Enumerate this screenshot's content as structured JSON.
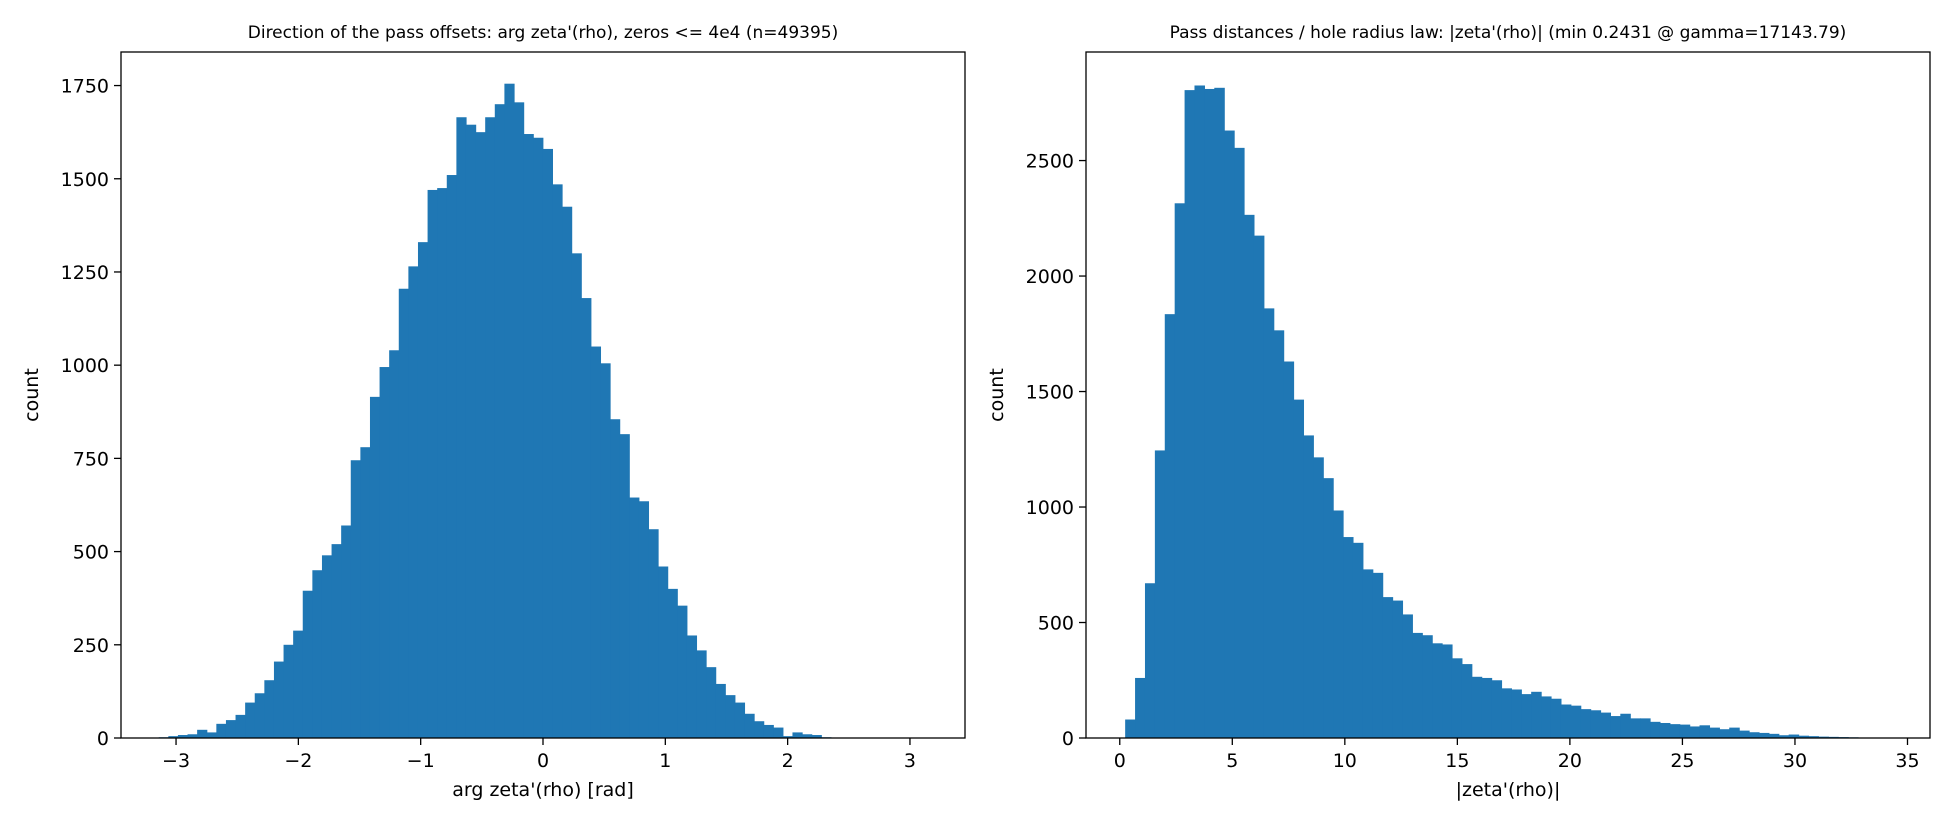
{
  "chart_data": [
    {
      "type": "bar",
      "title": "Direction of the pass offsets: arg zeta'(rho), zeros <= 4e4 (n=49395)",
      "xlabel": "arg zeta'(rho)  [rad]",
      "ylabel": "count",
      "xlim": [
        -3.45,
        3.45
      ],
      "ylim": [
        0,
        1840
      ],
      "xticks": [
        -3,
        -2,
        -1,
        0,
        1,
        2,
        3
      ],
      "xtick_labels": [
        "−3",
        "−2",
        "−1",
        "0",
        "1",
        "2",
        "3"
      ],
      "yticks": [
        0,
        250,
        500,
        750,
        1000,
        1250,
        1500,
        1750
      ],
      "ytick_labels": [
        "0",
        "250",
        "500",
        "750",
        "1000",
        "1250",
        "1500",
        "1750"
      ],
      "bin_start": -3.1416,
      "bin_width": 0.0785,
      "values": [
        2,
        5,
        8,
        10,
        22,
        15,
        38,
        48,
        62,
        95,
        120,
        155,
        205,
        250,
        288,
        395,
        450,
        490,
        520,
        570,
        745,
        780,
        915,
        995,
        1040,
        1205,
        1265,
        1330,
        1470,
        1475,
        1510,
        1665,
        1645,
        1625,
        1665,
        1700,
        1755,
        1705,
        1620,
        1610,
        1580,
        1485,
        1425,
        1300,
        1180,
        1050,
        1005,
        855,
        815,
        645,
        635,
        560,
        460,
        400,
        355,
        275,
        235,
        190,
        145,
        115,
        95,
        65,
        45,
        35,
        28,
        5,
        15,
        10,
        8,
        2
      ],
      "color": "#1f77b4",
      "grid": false
    },
    {
      "type": "bar",
      "title": "Pass distances / hole radius law: |zeta'(rho)| (min 0.2431 @ gamma=17143.79)",
      "xlabel": "|zeta'(rho)|",
      "ylabel": "count",
      "xlim": [
        -1.5,
        36.0
      ],
      "ylim": [
        0,
        2970
      ],
      "xticks": [
        0,
        5,
        10,
        15,
        20,
        25,
        30,
        35
      ],
      "xtick_labels": [
        "0",
        "5",
        "10",
        "15",
        "20",
        "25",
        "30",
        "35"
      ],
      "yticks": [
        0,
        500,
        1000,
        1500,
        2000,
        2500
      ],
      "ytick_labels": [
        "0",
        "500",
        "1000",
        "1500",
        "2000",
        "2500"
      ],
      "bin_start": 0.24,
      "bin_width": 0.44,
      "values": [
        80,
        260,
        670,
        1245,
        1835,
        2315,
        2805,
        2825,
        2810,
        2815,
        2630,
        2555,
        2265,
        2175,
        1860,
        1765,
        1630,
        1465,
        1310,
        1215,
        1125,
        985,
        870,
        845,
        730,
        715,
        610,
        595,
        535,
        455,
        445,
        410,
        405,
        345,
        320,
        265,
        260,
        250,
        215,
        210,
        190,
        200,
        180,
        170,
        145,
        140,
        125,
        120,
        110,
        95,
        105,
        85,
        85,
        70,
        65,
        60,
        58,
        50,
        55,
        45,
        38,
        45,
        32,
        25,
        22,
        18,
        12,
        15,
        10,
        8,
        6,
        5,
        4,
        3,
        2,
        2,
        1,
        1,
        1,
        1
      ],
      "color": "#1f77b4",
      "grid": false
    }
  ]
}
